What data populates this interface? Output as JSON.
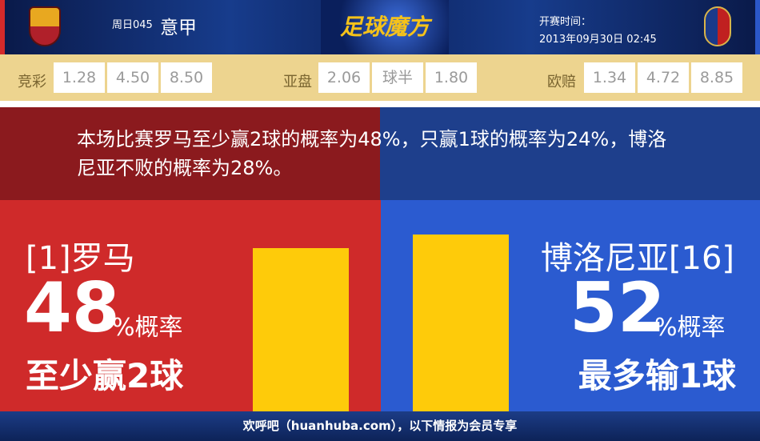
{
  "header": {
    "match_no": "周日045",
    "league": "意甲",
    "brand": "足球魔方",
    "time_label": "开赛时间：",
    "time_value": "2013年09月30日 02:45",
    "home_logo": "AS Roma crest",
    "away_logo": "Bologna FC crest"
  },
  "odds": {
    "jingcai": {
      "label": "竞彩",
      "values": [
        "1.28",
        "4.50",
        "8.50"
      ]
    },
    "yapan": {
      "label": "亚盘",
      "values": [
        "2.06",
        "球半",
        "1.80"
      ]
    },
    "oupei": {
      "label": "欧赔",
      "values": [
        "1.34",
        "4.72",
        "8.85"
      ]
    }
  },
  "summary": "本场比赛罗马至少赢2球的概率为48%，只赢1球的概率为24%，博洛尼亚不败的概率为28%。",
  "home": {
    "name": "[1]罗马",
    "pct": "48",
    "unit": "%概率",
    "desc": "至少赢2球",
    "color": "#cf2a2a",
    "bar_value": 48
  },
  "away": {
    "name": "博洛尼亚[16]",
    "pct": "52",
    "unit": "%概率",
    "desc": "最多输1球",
    "color": "#2b5bd0",
    "bar_value": 52
  },
  "footer": "欢呼吧（huanhuba.com），以下情报为会员专享"
}
